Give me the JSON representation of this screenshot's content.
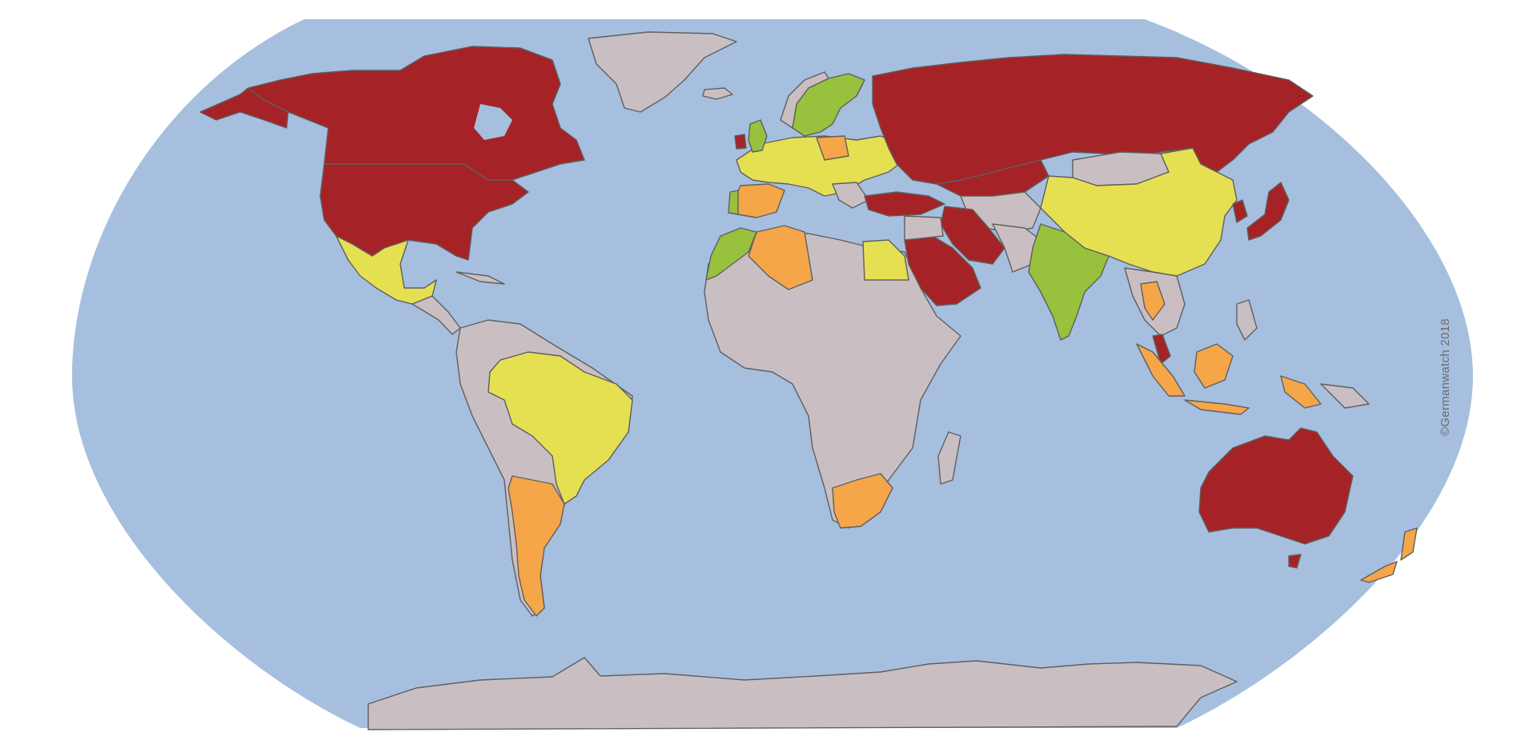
{
  "credit": "©Germanwatch 2018",
  "colors": {
    "ocean": "#a6bfdf",
    "no_data": "#c9bfc3",
    "very_low": "#a52326",
    "low": "#f5a649",
    "medium": "#e5e052",
    "high": "#98c13d",
    "border": "#5f5f5f"
  },
  "regions": [
    {
      "name": "Canada",
      "class": "very_low"
    },
    {
      "name": "United States",
      "class": "very_low"
    },
    {
      "name": "Russia",
      "class": "very_low"
    },
    {
      "name": "Australia",
      "class": "very_low"
    },
    {
      "name": "Saudi Arabia",
      "class": "very_low"
    },
    {
      "name": "Iran",
      "class": "very_low"
    },
    {
      "name": "Turkey",
      "class": "very_low"
    },
    {
      "name": "Japan",
      "class": "very_low"
    },
    {
      "name": "South Korea",
      "class": "very_low"
    },
    {
      "name": "Kazakhstan",
      "class": "very_low"
    },
    {
      "name": "Ireland",
      "class": "very_low"
    },
    {
      "name": "Mexico",
      "class": "medium"
    },
    {
      "name": "Brazil",
      "class": "medium"
    },
    {
      "name": "China",
      "class": "medium"
    },
    {
      "name": "Egypt",
      "class": "medium"
    },
    {
      "name": "Europe (central)",
      "class": "medium"
    },
    {
      "name": "Argentina",
      "class": "low"
    },
    {
      "name": "South Africa",
      "class": "low"
    },
    {
      "name": "Algeria",
      "class": "low"
    },
    {
      "name": "Spain",
      "class": "low"
    },
    {
      "name": "Thailand",
      "class": "low"
    },
    {
      "name": "Indonesia",
      "class": "low"
    },
    {
      "name": "Malaysia",
      "class": "low"
    },
    {
      "name": "New Zealand",
      "class": "low"
    },
    {
      "name": "Poland",
      "class": "low"
    },
    {
      "name": "India",
      "class": "high"
    },
    {
      "name": "Morocco",
      "class": "high"
    },
    {
      "name": "Sweden",
      "class": "high"
    },
    {
      "name": "United Kingdom",
      "class": "high"
    }
  ]
}
